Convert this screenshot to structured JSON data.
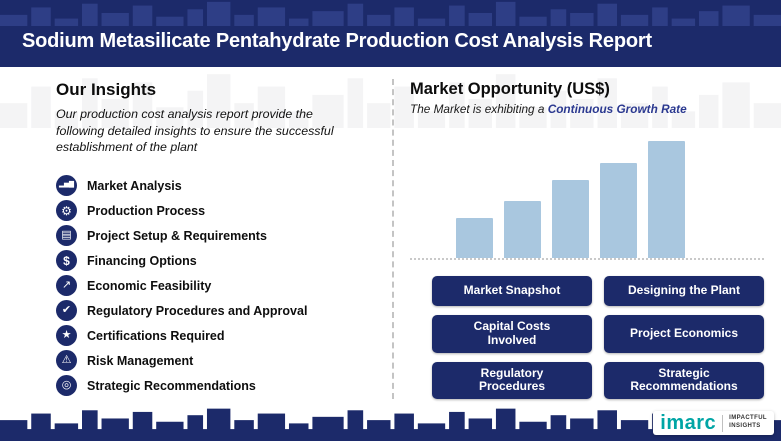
{
  "header": {
    "title": "Sodium Metasilicate Pentahydrate Production Cost Analysis Report"
  },
  "insights": {
    "heading": "Our Insights",
    "description": "Our production cost analysis report provide the following detailed insights to ensure the successful establishment of the plant",
    "items": [
      {
        "label": "Market Analysis",
        "icon": "bar-chart-icon",
        "glyph": "▂▅▇"
      },
      {
        "label": "Production Process",
        "icon": "gear-icon",
        "glyph": "⚙"
      },
      {
        "label": "Project Setup & Requirements",
        "icon": "clipboard-icon",
        "glyph": "▤"
      },
      {
        "label": "Financing Options",
        "icon": "dollar-icon",
        "glyph": "$"
      },
      {
        "label": "Economic Feasibility",
        "icon": "trend-up-icon",
        "glyph": "↗"
      },
      {
        "label": "Regulatory Procedures and Approval",
        "icon": "check-document-icon",
        "glyph": "✔"
      },
      {
        "label": "Certifications Required",
        "icon": "certificate-icon",
        "glyph": "★"
      },
      {
        "label": "Risk Management",
        "icon": "risk-warning-icon",
        "glyph": "⚠"
      },
      {
        "label": "Strategic Recommendations",
        "icon": "target-icon",
        "glyph": "◎"
      }
    ]
  },
  "market": {
    "heading": "Market Opportunity (US$)",
    "subtitle_prefix": "The Market is exhibiting a",
    "subtitle_accent": "Continuous Growth Rate"
  },
  "chart_data": {
    "type": "bar",
    "values": [
      40,
      57,
      78,
      95,
      117
    ],
    "units": "relative (axis unlabeled)",
    "title": "Market Opportunity (US$)",
    "xlabel": "",
    "ylabel": "",
    "grid": false,
    "legend": false,
    "baseline_style": "dotted",
    "bar_color": "#a9c7df"
  },
  "buttons": [
    {
      "label": "Market Snapshot"
    },
    {
      "label": "Designing the Plant"
    },
    {
      "label": "Capital Costs Involved"
    },
    {
      "label": "Project Economics"
    },
    {
      "label": "Regulatory Procedures"
    },
    {
      "label": "Strategic Recommendations"
    }
  ],
  "logo": {
    "brand": "imarc",
    "tagline_line1": "IMPACTFUL",
    "tagline_line2": "INSIGHTS"
  },
  "colors": {
    "navy": "#1c2a6a",
    "skyline_light": "#2e3e86",
    "bar_blue": "#a9c7df",
    "accent_blue": "#2b3990",
    "teal": "#00a5a5"
  }
}
